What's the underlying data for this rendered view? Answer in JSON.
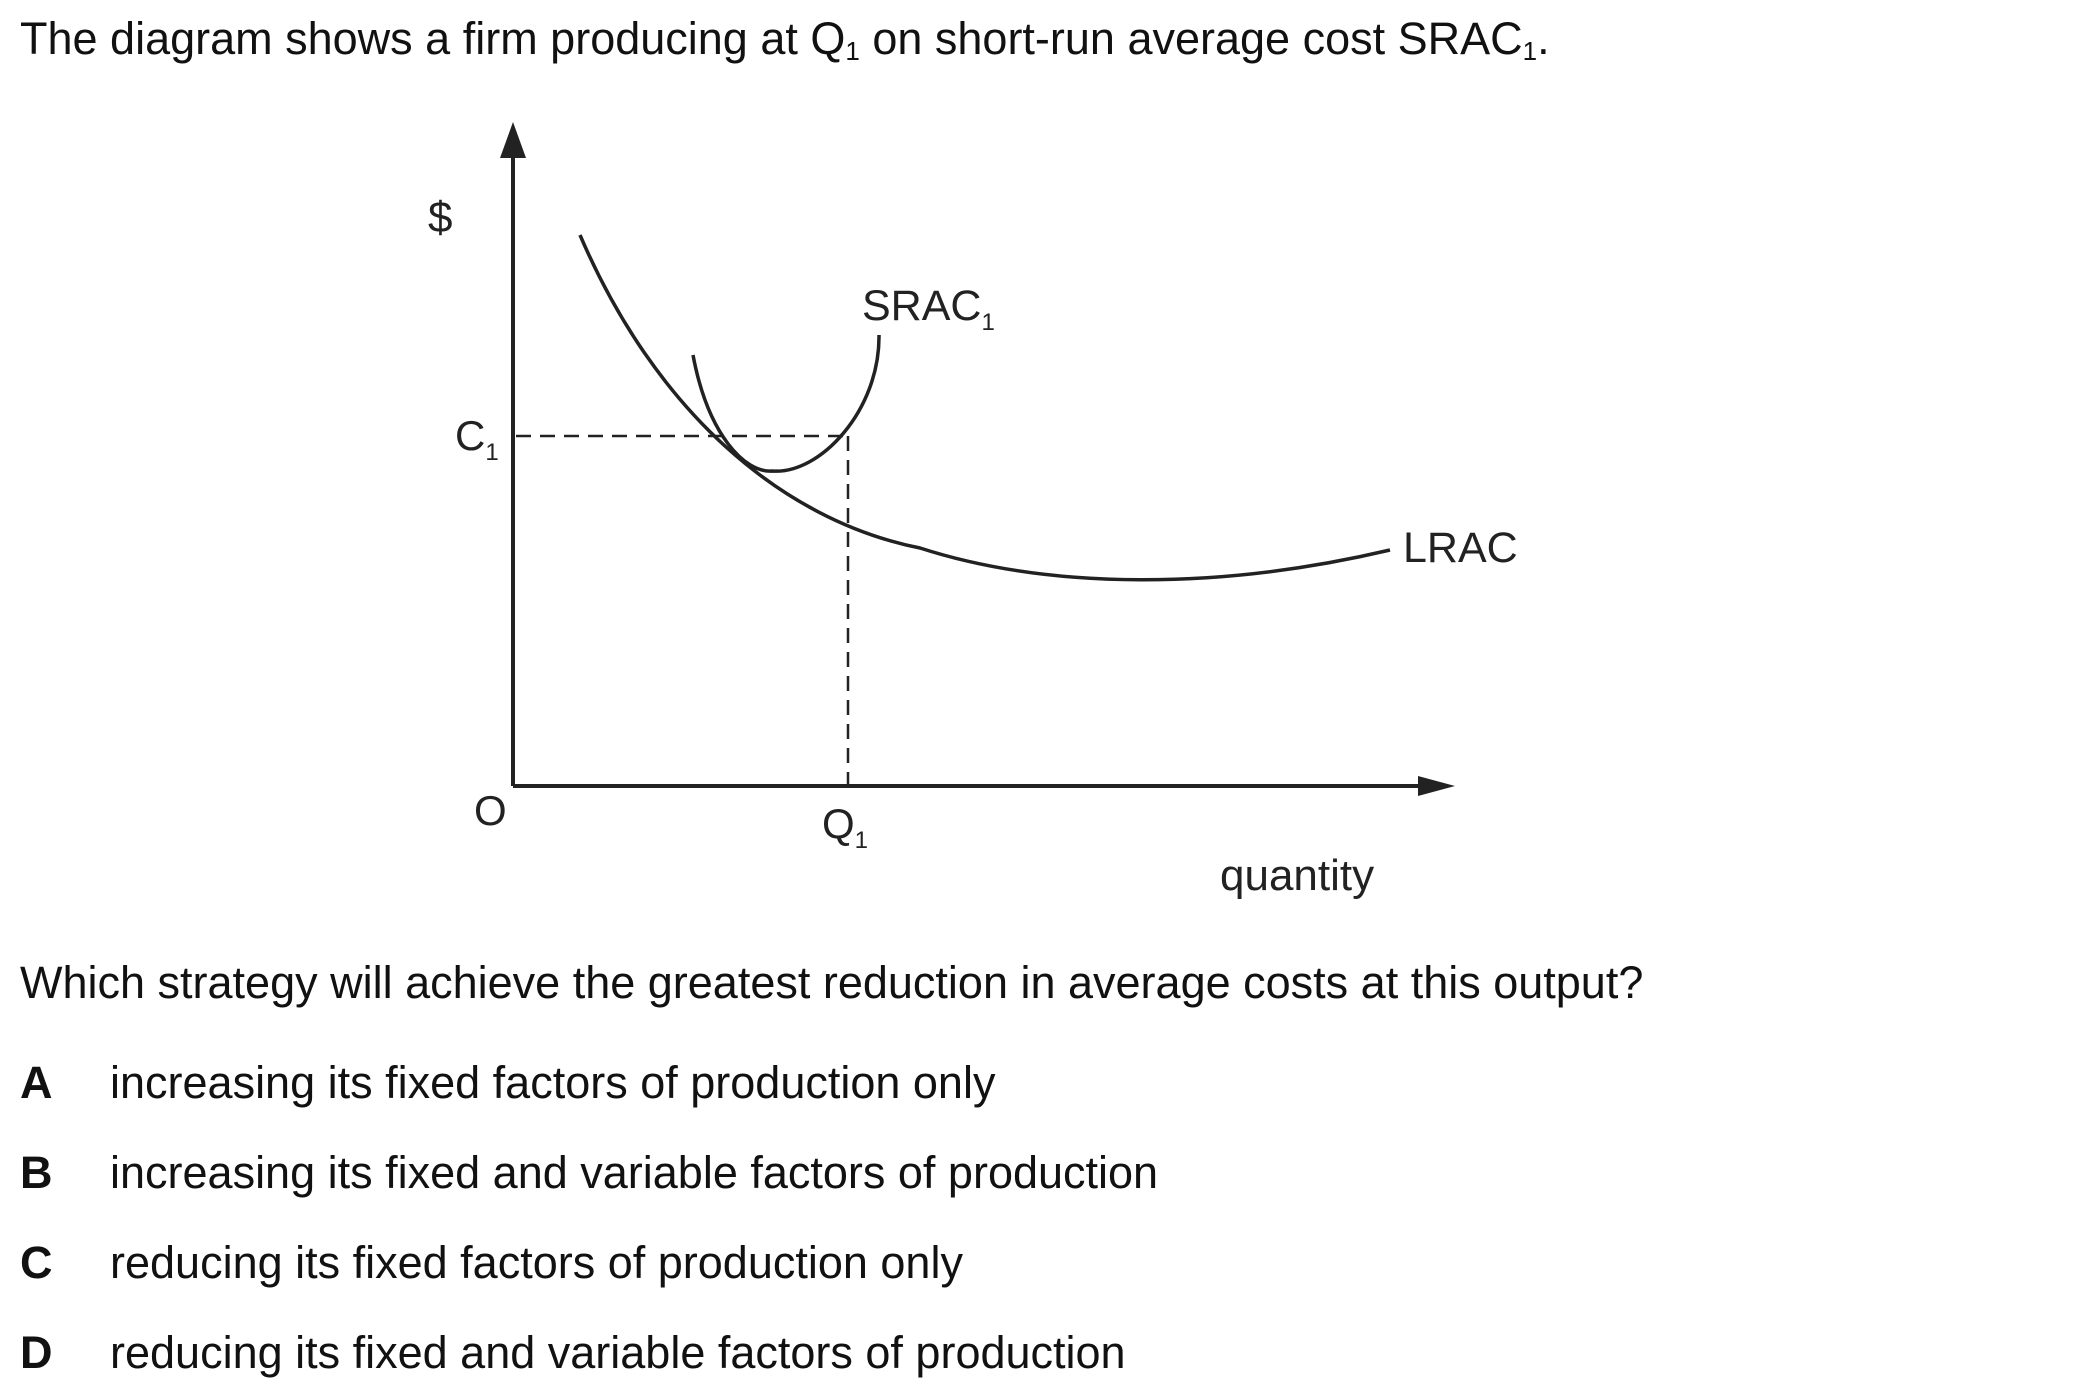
{
  "intro": {
    "before_q": "The diagram shows a firm producing at Q",
    "q_sub": "1",
    "middle": " on short-run average cost SRAC",
    "srac_sub": "1",
    "end": "."
  },
  "diagram": {
    "y_axis_label": "$",
    "origin_label": "O",
    "x_axis_label": "quantity",
    "c1_label": "C",
    "c1_sub": "1",
    "q1_label": "Q",
    "q1_sub": "1",
    "srac_label": "SRAC",
    "srac_sub": "1",
    "lrac_label": "LRAC"
  },
  "question": "Which strategy will achieve the greatest reduction in average costs at this output?",
  "options": [
    {
      "letter": "A",
      "text": "increasing its fixed factors of production only"
    },
    {
      "letter": "B",
      "text": "increasing its fixed and variable factors of production"
    },
    {
      "letter": "C",
      "text": "reducing its fixed factors of production only"
    },
    {
      "letter": "D",
      "text": "reducing its fixed and variable factors of production"
    }
  ]
}
